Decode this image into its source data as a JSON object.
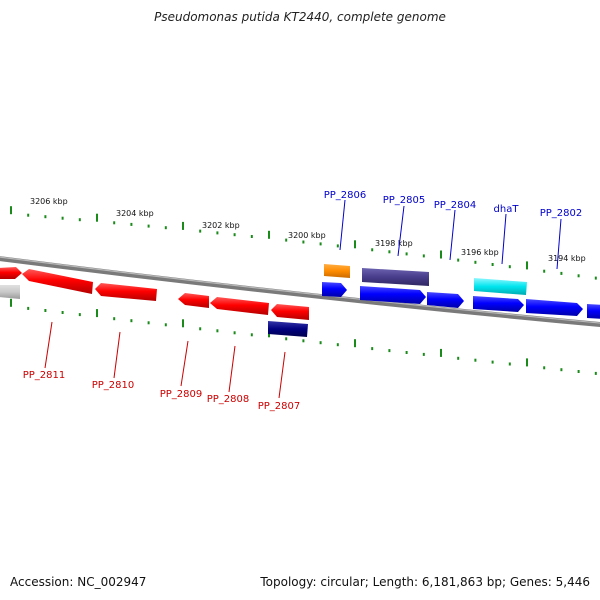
{
  "title": "Pseudomonas putida KT2440, complete genome",
  "footer": {
    "accession": "Accession: NC_002947",
    "summary": "Topology: circular; Length: 6,181,863 bp; Genes: 5,446"
  },
  "colors": {
    "background": "#ffffff",
    "backbone": "#7a7a7a",
    "tick": "#1a8a1a",
    "forward_label": "#0000cc",
    "reverse_label": "#cc0000",
    "forward_gene": "#0000ff",
    "reverse_gene": "#ff0000"
  },
  "scale_labels": [
    {
      "text": "3206 kbp"
    },
    {
      "text": "3204 kbp"
    },
    {
      "text": "3202 kbp"
    },
    {
      "text": "3200 kbp"
    },
    {
      "text": "3198 kbp"
    },
    {
      "text": "3196 kbp"
    },
    {
      "text": "3194 kbp"
    }
  ],
  "genes": [
    {
      "name": "PP_2806",
      "strand": "forward",
      "color": "#ff8c00"
    },
    {
      "name": "PP_2805",
      "strand": "forward",
      "color": "#483d8b"
    },
    {
      "name": "PP_2804",
      "strand": "forward",
      "color": "#0000ff"
    },
    {
      "name": "dhaT",
      "strand": "forward",
      "color": "#00e5ee"
    },
    {
      "name": "PP_2802",
      "strand": "forward",
      "color": "#0000ff"
    },
    {
      "name": "PP_2811",
      "strand": "reverse",
      "color": "#ff0000"
    },
    {
      "name": "PP_2810",
      "strand": "reverse",
      "color": "#ff0000"
    },
    {
      "name": "PP_2809",
      "strand": "reverse",
      "color": "#ff0000"
    },
    {
      "name": "PP_2808",
      "strand": "reverse",
      "color": "#ff0000"
    },
    {
      "name": "PP_2807",
      "strand": "reverse",
      "color": "#000080"
    }
  ]
}
